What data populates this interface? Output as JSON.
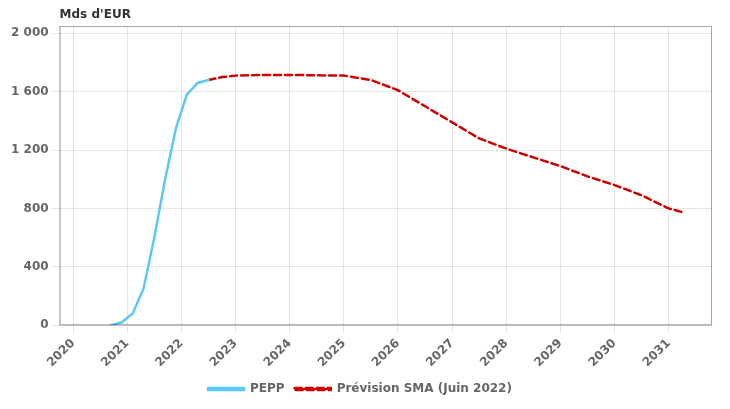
{
  "chart_data": {
    "type": "line",
    "ylabel": "Mds d'EUR",
    "series": [
      {
        "name": "PEPP",
        "color": "#5BC8F5",
        "line_style": "solid",
        "x": [
          2020.7,
          2020.9,
          2021.1,
          2021.3,
          2021.5,
          2021.7,
          2021.9,
          2022.1,
          2022.3,
          2022.5
        ],
        "values": [
          0,
          20,
          80,
          250,
          600,
          1000,
          1350,
          1580,
          1660,
          1680
        ]
      },
      {
        "name": "Prévision SMA (Juin 2022)",
        "color": "#CC0000",
        "line_style": "dashed",
        "x": [
          2022.5,
          2022.75,
          2023.0,
          2023.5,
          2024.0,
          2024.5,
          2025.0,
          2025.5,
          2026.0,
          2026.5,
          2027.0,
          2027.5,
          2028.0,
          2028.5,
          2029.0,
          2029.5,
          2030.0,
          2030.5,
          2031.0,
          2031.3
        ],
        "values": [
          1680,
          1700,
          1710,
          1715,
          1715,
          1712,
          1710,
          1680,
          1610,
          1500,
          1390,
          1280,
          1210,
          1150,
          1090,
          1020,
          960,
          890,
          800,
          770
        ]
      }
    ],
    "xlim": [
      2019.75,
      2031.8
    ],
    "xticks": [
      2020,
      2021,
      2022,
      2023,
      2024,
      2025,
      2026,
      2027,
      2028,
      2029,
      2030,
      2031
    ],
    "ylim": [
      0,
      2050
    ],
    "yticks": [
      0,
      400,
      800,
      {
        "value": 1200,
        "label": "1 200"
      },
      {
        "value": 1600,
        "label": "1 600"
      },
      {
        "value": 2000,
        "label": "2 000"
      }
    ],
    "grid": true,
    "legend": "bottom"
  }
}
